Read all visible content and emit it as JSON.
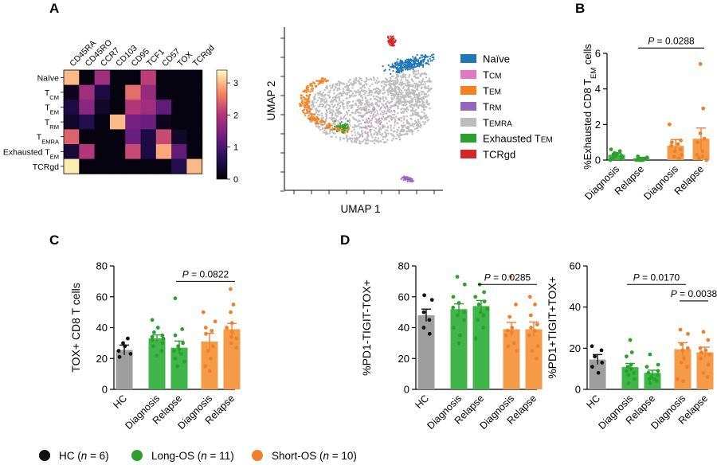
{
  "panels": {
    "a": "A",
    "b": "B",
    "c": "C",
    "d": "D"
  },
  "colors": {
    "hc": "#111111",
    "long": "#2ca02c",
    "short": "#f07f2d",
    "naive": "#1f77b4",
    "tcm": "#e377c2",
    "tem": "#f5821f",
    "trm": "#9467bd",
    "temra": "#bdbdbd",
    "extem": "#2ca02c",
    "tcrgd": "#d62728"
  },
  "chart_data": [
    {
      "id": "heatmap",
      "type": "heatmap",
      "columns": [
        "CD45RA",
        "CD45RO",
        "CCR7",
        "CD103",
        "CD95",
        "TCF1",
        "CD57",
        "TOX",
        "TCRgd"
      ],
      "rows": [
        {
          "base": "Naïve",
          "sub": ""
        },
        {
          "base": "T",
          "sub": "CM"
        },
        {
          "base": "T",
          "sub": "EM"
        },
        {
          "base": "T",
          "sub": "RM"
        },
        {
          "base": "T",
          "sub": "EMRA"
        },
        {
          "base": "Exhausted T",
          "sub": "EM"
        },
        {
          "base": "TCRgd",
          "sub": ""
        }
      ],
      "values": [
        [
          3.0,
          0.1,
          1.8,
          0.1,
          0.1,
          2.1,
          0.1,
          0.1,
          0.1
        ],
        [
          0.2,
          1.8,
          0.5,
          0.1,
          2.5,
          1.7,
          0.1,
          0.1,
          0.1
        ],
        [
          0.5,
          1.6,
          0.3,
          0.1,
          2.0,
          1.8,
          1.2,
          0.1,
          0.1
        ],
        [
          0.3,
          0.6,
          0.1,
          3.0,
          1.4,
          1.3,
          0.2,
          0.1,
          0.1
        ],
        [
          2.4,
          0.1,
          0.1,
          0.1,
          1.3,
          0.5,
          2.2,
          0.3,
          0.1
        ],
        [
          0.4,
          2.0,
          0.1,
          0.1,
          2.2,
          0.5,
          2.9,
          1.2,
          0.1
        ],
        [
          3.3,
          0.1,
          0.1,
          0.1,
          0.1,
          0.1,
          0.1,
          0.6,
          3.0
        ]
      ],
      "colorbar_ticks": [
        "0",
        "1",
        "2",
        "3"
      ],
      "vmin": 0,
      "vmax": 3.4
    },
    {
      "id": "umap",
      "type": "scatter",
      "xlabel": "UMAP 1",
      "ylabel": "UMAP 2",
      "legend": [
        {
          "key": "naive",
          "base": "Naïve",
          "sub": ""
        },
        {
          "key": "tcm",
          "base": "T",
          "sub": "CM"
        },
        {
          "key": "tem",
          "base": "T",
          "sub": "EM"
        },
        {
          "key": "trm",
          "base": "T",
          "sub": "RM"
        },
        {
          "key": "temra",
          "base": "T",
          "sub": "EMRA"
        },
        {
          "key": "extem",
          "base": "Exhausted T",
          "sub": "EM"
        },
        {
          "key": "tcrgd",
          "base": "TCRgd",
          "sub": ""
        }
      ]
    },
    {
      "id": "B",
      "type": "bar",
      "ylabel_pre": "%Exhausted CD8 T",
      "ylabel_sub": "EM",
      "ylabel_post": " cells",
      "ylim": [
        0,
        6
      ],
      "yticks": [
        0,
        2,
        4,
        6
      ],
      "categories": [
        "Diagnosis",
        "Relapse",
        "Diagnosis",
        "Relapse"
      ],
      "groups": [
        "long",
        "long",
        "short",
        "short"
      ],
      "values": [
        0.3,
        0.1,
        0.8,
        1.2
      ],
      "errors": [
        0.08,
        0.05,
        0.35,
        0.6
      ],
      "points": [
        [
          0.6,
          0.5,
          0.4,
          0.35,
          0.3,
          0.25,
          0.2,
          0.15,
          0.1,
          0.05,
          0.0
        ],
        [
          0.2,
          0.15,
          0.1,
          0.1,
          0.05,
          0.05,
          0.0,
          0.0,
          0.0,
          0.0,
          0.0
        ],
        [
          2.0,
          1.1,
          1.0,
          0.9,
          0.8,
          0.6,
          0.5,
          0.3,
          0.2,
          0.1
        ],
        [
          5.4,
          2.9,
          1.5,
          1.2,
          1.0,
          0.5,
          0.3,
          0.2,
          0.1,
          0.0
        ]
      ],
      "sig": [
        {
          "from": 1,
          "to": 3,
          "level": 6.3,
          "label": "P = 0.0288"
        }
      ]
    },
    {
      "id": "C",
      "type": "bar",
      "ylabel": "TOX+ CD8 T cells",
      "ylim": [
        0,
        80
      ],
      "yticks": [
        0,
        20,
        40,
        60,
        80
      ],
      "categories": [
        "HC",
        "Diagnosis",
        "Relapse",
        "Diagnosis",
        "Relapse"
      ],
      "groups": [
        "hc",
        "long",
        "long",
        "short",
        "short"
      ],
      "values": [
        25.5,
        33.0,
        27.0,
        31.0,
        39.0
      ],
      "errors": [
        3.2,
        2.3,
        4.3,
        5.4,
        3.7
      ],
      "points": [
        [
          30,
          28,
          25,
          23,
          21,
          33
        ],
        [
          45,
          40,
          37,
          35,
          34,
          33,
          32,
          30,
          28,
          25,
          22
        ],
        [
          59,
          39,
          35,
          30,
          28,
          26,
          25,
          23,
          20,
          18,
          15
        ],
        [
          50,
          44,
          40,
          38,
          36,
          28,
          25,
          20,
          15,
          12
        ],
        [
          65,
          55,
          50,
          43,
          40,
          37,
          34,
          33,
          30,
          27
        ]
      ],
      "sig": [
        {
          "from": 2,
          "to": 4,
          "level": 70,
          "label": "P = 0.0822"
        }
      ]
    },
    {
      "id": "D1",
      "type": "bar",
      "ylabel": "%PD1-TIGIT-TOX+",
      "ylim": [
        0,
        80
      ],
      "yticks": [
        0,
        20,
        40,
        60,
        80
      ],
      "categories": [
        "HC",
        "Diagnosis",
        "Relapse",
        "Diagnosis",
        "Relapse"
      ],
      "groups": [
        "hc",
        "long",
        "long",
        "short",
        "short"
      ],
      "values": [
        48.0,
        52.0,
        54.0,
        39.0,
        39.0
      ],
      "errors": [
        4.0,
        3.4,
        3.6,
        4.4,
        4.7
      ],
      "points": [
        [
          61,
          58,
          50,
          45,
          40,
          36
        ],
        [
          73,
          68,
          60,
          56,
          53,
          50,
          48,
          45,
          40,
          35,
          30
        ],
        [
          68,
          63,
          60,
          57,
          55,
          52,
          50,
          48,
          45,
          40,
          33
        ],
        [
          73,
          55,
          47,
          40,
          38,
          37,
          35,
          30,
          28,
          25
        ],
        [
          60,
          55,
          48,
          42,
          40,
          38,
          35,
          28,
          25,
          20
        ]
      ],
      "sig": [
        {
          "from": 2,
          "to": 4,
          "level": 68,
          "label": "P = 0.0285"
        }
      ]
    },
    {
      "id": "D2",
      "type": "bar",
      "ylabel": "%PD1+TIGIT+TOX+",
      "ylim": [
        0,
        60
      ],
      "yticks": [
        0,
        20,
        40,
        60
      ],
      "categories": [
        "HC",
        "Diagnosis",
        "Relapse",
        "Diagnosis",
        "Relapse"
      ],
      "groups": [
        "hc",
        "long",
        "long",
        "short",
        "short"
      ],
      "values": [
        14.5,
        10.8,
        8.0,
        19.5,
        18.0
      ],
      "errors": [
        2.4,
        1.8,
        1.3,
        3.2,
        2.5
      ],
      "points": [
        [
          21,
          19,
          16,
          13,
          11,
          8
        ],
        [
          24,
          18,
          16,
          12,
          11,
          10,
          9,
          8,
          7,
          5,
          3
        ],
        [
          17,
          12,
          11,
          9,
          8,
          7,
          6,
          5,
          5,
          4,
          3
        ],
        [
          29,
          27,
          22,
          20,
          19,
          15,
          13,
          11,
          5,
          4
        ],
        [
          28,
          24,
          20,
          19,
          18,
          17,
          15,
          12,
          8,
          6
        ]
      ],
      "sig": [
        {
          "from": 1,
          "to": 3,
          "level": 51,
          "label": "P = 0.0170"
        },
        {
          "from": 3,
          "to": 4,
          "level": 43,
          "label": "P = 0.0038"
        }
      ]
    }
  ],
  "legend": [
    {
      "key": "hc",
      "label": "HC (",
      "n": "n",
      "rest": " = 6)"
    },
    {
      "key": "long",
      "label": "Long-OS  (",
      "n": "n",
      "rest": " = 11)"
    },
    {
      "key": "short",
      "label": "Short-OS (",
      "n": "n",
      "rest": " = 10)"
    }
  ]
}
